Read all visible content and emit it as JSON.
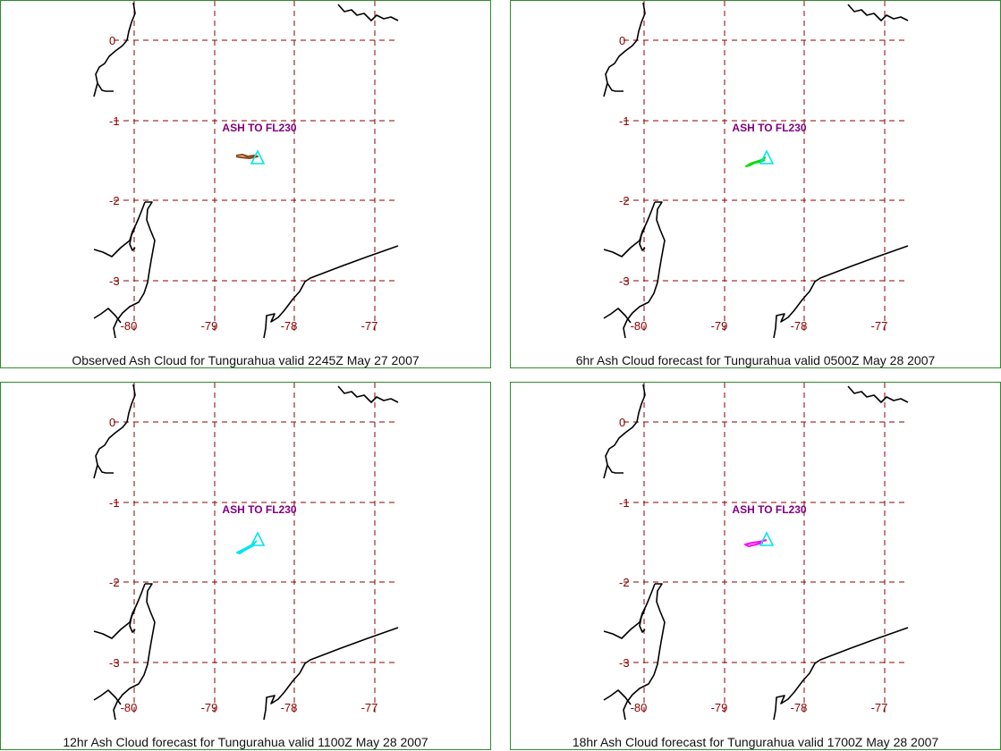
{
  "colors": {
    "panel_border": "#2e8b2e",
    "grid": "#8b0000",
    "coastline": "#000000",
    "volcano_marker": "#00e5ee",
    "annotation": "#800080"
  },
  "map": {
    "lat_ticks": [
      "0",
      "-1",
      "-2",
      "-3"
    ],
    "lon_ticks": [
      "-80",
      "-79",
      "-78",
      "-77"
    ]
  },
  "panels": [
    {
      "caption": "Observed Ash Cloud for Tungurahua valid 2245Z May 27 2007",
      "annotation": "ASH TO FL230",
      "cloud_color": "#8b4513",
      "cloud_shape": "observed-plume"
    },
    {
      "caption": "6hr Ash Cloud forecast for Tungurahua valid 0500Z May 28 2007",
      "annotation": "ASH TO FL230",
      "cloud_color": "#00dd00",
      "cloud_shape": "forecast-plume-sw"
    },
    {
      "caption": "12hr Ash Cloud forecast for Tungurahua valid 1100Z May 28 2007",
      "annotation": "ASH TO FL230",
      "cloud_color": "#00e5ee",
      "cloud_shape": "forecast-plume-sw-long"
    },
    {
      "caption": "18hr Ash Cloud forecast for Tungurahua valid 1700Z May 28 2007",
      "annotation": "ASH TO FL230",
      "cloud_color": "#ff00ff",
      "cloud_shape": "forecast-plume-w"
    }
  ]
}
